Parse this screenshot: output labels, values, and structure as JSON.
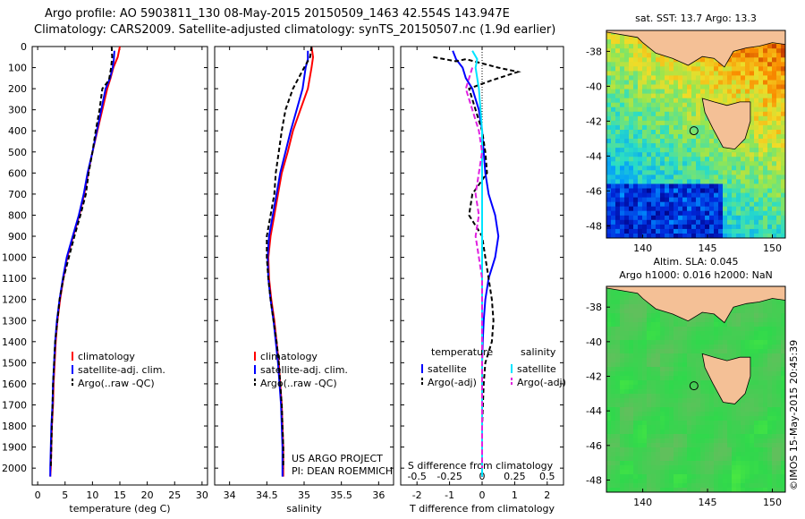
{
  "header": {
    "line1": "Argo profile: AO 5903811_130 08-May-2015 20150509_1463 42.554S 143.947E",
    "line2": "Climatology: CARS2009. Satellite-adjusted climatology: synTS_20150507.nc (1.9d earlier)"
  },
  "credit": "US ARGO PROJECT",
  "pi": "PI: DEAN ROEMMICH",
  "watermark": "©IMOS 15-May-2015 20:45:39",
  "colors": {
    "clim": "#ff0000",
    "sat": "#0000ff",
    "argo": "#000000",
    "sat_s": "#00e5ff",
    "argo_s": "#e020e0",
    "land": "#f4c096"
  },
  "chart_data": [
    {
      "type": "line",
      "id": "temperature",
      "xlabel": "temperature (deg C)",
      "ylabel": "",
      "xlim": [
        -1,
        31
      ],
      "ylim": [
        2080,
        0
      ],
      "xticks": [
        "0",
        "5",
        "10",
        "15",
        "20",
        "25",
        "30"
      ],
      "yticks": [
        "0",
        "100",
        "200",
        "300",
        "400",
        "500",
        "600",
        "700",
        "800",
        "900",
        "1000",
        "1100",
        "1200",
        "1300",
        "1400",
        "1500",
        "1600",
        "1700",
        "1800",
        "1900",
        "2000"
      ],
      "legend": [
        "climatology",
        "satellite-adj. clim.",
        "Argo(..raw -QC)"
      ],
      "series": [
        {
          "name": "climatology",
          "color": "#ff0000",
          "dash": "",
          "points": [
            [
              15,
              0
            ],
            [
              14.6,
              50
            ],
            [
              13.8,
              100
            ],
            [
              13.3,
              150
            ],
            [
              12.7,
              200
            ],
            [
              11.8,
              300
            ],
            [
              10.9,
              400
            ],
            [
              10,
              500
            ],
            [
              9.2,
              600
            ],
            [
              8.5,
              700
            ],
            [
              7.6,
              800
            ],
            [
              6.5,
              900
            ],
            [
              5.4,
              1000
            ],
            [
              4.7,
              1100
            ],
            [
              4.1,
              1200
            ],
            [
              3.6,
              1300
            ],
            [
              3.3,
              1400
            ],
            [
              3.1,
              1500
            ],
            [
              2.9,
              1600
            ],
            [
              2.8,
              1700
            ],
            [
              2.6,
              1800
            ],
            [
              2.5,
              1900
            ],
            [
              2.4,
              2000
            ],
            [
              2.3,
              2040
            ]
          ]
        },
        {
          "name": "satellite-adj. clim.",
          "color": "#0000ff",
          "dash": "",
          "points": [
            [
              14,
              20
            ],
            [
              13.9,
              60
            ],
            [
              13.7,
              100
            ],
            [
              13.2,
              150
            ],
            [
              12.4,
              200
            ],
            [
              11.6,
              300
            ],
            [
              10.8,
              400
            ],
            [
              10,
              500
            ],
            [
              9.1,
              600
            ],
            [
              8.4,
              700
            ],
            [
              7.5,
              800
            ],
            [
              6.4,
              900
            ],
            [
              5.3,
              1000
            ],
            [
              4.6,
              1100
            ],
            [
              4,
              1200
            ],
            [
              3.5,
              1300
            ],
            [
              3.2,
              1400
            ],
            [
              3,
              1500
            ],
            [
              2.8,
              1600
            ],
            [
              2.7,
              1700
            ],
            [
              2.5,
              1800
            ],
            [
              2.4,
              1900
            ],
            [
              2.3,
              2000
            ],
            [
              2.3,
              2040
            ]
          ]
        },
        {
          "name": "Argo(..raw -QC)",
          "color": "#000000",
          "dash": "5,3",
          "points": [
            [
              13.5,
              0
            ],
            [
              13.6,
              50
            ],
            [
              13.4,
              100
            ],
            [
              13,
              160
            ],
            [
              11.8,
              200
            ],
            [
              11.3,
              300
            ],
            [
              10.6,
              400
            ],
            [
              10,
              500
            ],
            [
              9.3,
              600
            ],
            [
              8.8,
              700
            ],
            [
              7.8,
              800
            ],
            [
              6.7,
              900
            ],
            [
              5.7,
              1000
            ],
            [
              4.7,
              1100
            ],
            [
              4,
              1200
            ],
            [
              3.6,
              1300
            ],
            [
              3.2,
              1400
            ],
            [
              3,
              1500
            ],
            [
              2.8,
              1600
            ],
            [
              2.7,
              1700
            ],
            [
              2.6,
              1800
            ],
            [
              2.5,
              1900
            ],
            [
              2.4,
              2000
            ]
          ]
        }
      ]
    },
    {
      "type": "line",
      "id": "salinity",
      "xlabel": "salinity",
      "ylabel": "",
      "xlim": [
        33.8,
        36.2
      ],
      "ylim": [
        2080,
        0
      ],
      "xticks": [
        "34",
        "34.5",
        "35",
        "35.5",
        "36"
      ],
      "legend": [
        "climatology",
        "satellite-adj. clim.",
        "Argo(..raw -QC)"
      ],
      "series": [
        {
          "name": "climatology",
          "color": "#ff0000",
          "dash": "",
          "points": [
            [
              35.1,
              0
            ],
            [
              35.12,
              50
            ],
            [
              35.1,
              100
            ],
            [
              35.05,
              200
            ],
            [
              34.95,
              300
            ],
            [
              34.85,
              400
            ],
            [
              34.78,
              500
            ],
            [
              34.7,
              600
            ],
            [
              34.65,
              700
            ],
            [
              34.6,
              800
            ],
            [
              34.55,
              900
            ],
            [
              34.52,
              1000
            ],
            [
              34.53,
              1100
            ],
            [
              34.56,
              1200
            ],
            [
              34.6,
              1300
            ],
            [
              34.63,
              1400
            ],
            [
              34.66,
              1500
            ],
            [
              34.68,
              1600
            ],
            [
              34.7,
              1700
            ],
            [
              34.71,
              1800
            ],
            [
              34.72,
              1900
            ],
            [
              34.72,
              2000
            ],
            [
              34.72,
              2040
            ]
          ]
        },
        {
          "name": "satellite-adj. clim.",
          "color": "#0000ff",
          "dash": "",
          "points": [
            [
              35.05,
              20
            ],
            [
              35.05,
              60
            ],
            [
              35.02,
              100
            ],
            [
              34.98,
              200
            ],
            [
              34.9,
              300
            ],
            [
              34.82,
              400
            ],
            [
              34.75,
              500
            ],
            [
              34.68,
              600
            ],
            [
              34.63,
              700
            ],
            [
              34.58,
              800
            ],
            [
              34.53,
              900
            ],
            [
              34.51,
              1000
            ],
            [
              34.52,
              1100
            ],
            [
              34.55,
              1200
            ],
            [
              34.59,
              1300
            ],
            [
              34.62,
              1400
            ],
            [
              34.65,
              1500
            ],
            [
              34.67,
              1600
            ],
            [
              34.69,
              1700
            ],
            [
              34.7,
              1800
            ],
            [
              34.71,
              1900
            ],
            [
              34.71,
              2000
            ],
            [
              34.71,
              2040
            ]
          ]
        },
        {
          "name": "Argo(..raw -QC)",
          "color": "#000000",
          "dash": "5,3",
          "points": [
            [
              35.1,
              0
            ],
            [
              35.08,
              50
            ],
            [
              35.0,
              100
            ],
            [
              34.85,
              200
            ],
            [
              34.75,
              300
            ],
            [
              34.7,
              400
            ],
            [
              34.66,
              500
            ],
            [
              34.62,
              600
            ],
            [
              34.6,
              700
            ],
            [
              34.55,
              800
            ],
            [
              34.5,
              900
            ],
            [
              34.5,
              1000
            ],
            [
              34.52,
              1100
            ],
            [
              34.55,
              1200
            ],
            [
              34.59,
              1300
            ],
            [
              34.63,
              1400
            ],
            [
              34.66,
              1500
            ],
            [
              34.68,
              1600
            ],
            [
              34.7,
              1700
            ],
            [
              34.71,
              1800
            ],
            [
              34.72,
              1900
            ],
            [
              34.72,
              2000
            ]
          ]
        }
      ]
    },
    {
      "type": "line",
      "id": "difference",
      "xlabel": "T difference from climatology",
      "xlabel_top": "S difference from climatology",
      "xlim": [
        -2.5,
        2.5
      ],
      "ylim": [
        2080,
        0
      ],
      "xticks_bottom": [
        "-2",
        "-1",
        "0",
        "1",
        "2"
      ],
      "xticks_top": [
        "-0.5",
        "-0.25",
        "0",
        "0.25",
        "0.5"
      ],
      "legend_titles": [
        "temperature",
        "salinity"
      ],
      "legend": [
        "satellite",
        "Argo(-adj)",
        "satellite",
        "Argo(-adj)"
      ],
      "series": [
        {
          "name": "satellite",
          "color": "#0000ff",
          "dash": "",
          "points": [
            [
              -0.9,
              20
            ],
            [
              -0.8,
              60
            ],
            [
              -0.6,
              100
            ],
            [
              -0.5,
              150
            ],
            [
              -0.3,
              200
            ],
            [
              -0.1,
              300
            ],
            [
              0,
              400
            ],
            [
              0.05,
              500
            ],
            [
              0.1,
              600
            ],
            [
              0.2,
              700
            ],
            [
              0.4,
              800
            ],
            [
              0.5,
              900
            ],
            [
              0.4,
              1000
            ],
            [
              0.2,
              1100
            ],
            [
              0.1,
              1200
            ],
            [
              0.05,
              1300
            ],
            [
              0.02,
              1400
            ],
            [
              0,
              1500
            ],
            [
              0,
              1600
            ],
            [
              0,
              1800
            ],
            [
              0,
              2040
            ]
          ]
        },
        {
          "name": "Argo(-adj)",
          "color": "#000000",
          "dash": "5,3",
          "points": [
            [
              -1.5,
              50
            ],
            [
              -0.8,
              70
            ],
            [
              -0.5,
              60
            ],
            [
              0.5,
              100
            ],
            [
              1.1,
              120
            ],
            [
              0.3,
              160
            ],
            [
              -0.4,
              200
            ],
            [
              -0.2,
              300
            ],
            [
              0,
              400
            ],
            [
              0.1,
              500
            ],
            [
              0.15,
              600
            ],
            [
              -0.3,
              700
            ],
            [
              -0.4,
              800
            ],
            [
              0,
              900
            ],
            [
              0.1,
              1000
            ],
            [
              0.2,
              1100
            ],
            [
              0.3,
              1200
            ],
            [
              0.35,
              1300
            ],
            [
              0.3,
              1400
            ],
            [
              0.1,
              1500
            ],
            [
              0.05,
              1600
            ],
            [
              0,
              1800
            ],
            [
              0,
              2000
            ]
          ]
        },
        {
          "name": "satellite",
          "color": "#00e5ff",
          "dash": "",
          "points": [
            [
              -0.3,
              20
            ],
            [
              -0.15,
              60
            ],
            [
              -0.2,
              100
            ],
            [
              -0.1,
              200
            ],
            [
              0,
              400
            ],
            [
              0,
              600
            ],
            [
              0,
              800
            ],
            [
              0,
              1000
            ],
            [
              0,
              1200
            ],
            [
              0,
              1400
            ],
            [
              0,
              1600
            ],
            [
              0,
              1800
            ],
            [
              0,
              2040
            ]
          ]
        },
        {
          "name": "Argo(-adj)",
          "color": "#e020e0",
          "dash": "6,3",
          "points": [
            [
              -0.3,
              100
            ],
            [
              -0.5,
              200
            ],
            [
              -0.3,
              300
            ],
            [
              -0.1,
              400
            ],
            [
              0,
              500
            ],
            [
              -0.1,
              600
            ],
            [
              -0.2,
              700
            ],
            [
              -0.1,
              800
            ],
            [
              -0.2,
              900
            ],
            [
              -0.1,
              1000
            ],
            [
              0,
              1100
            ],
            [
              0,
              1300
            ],
            [
              0,
              1500
            ],
            [
              0,
              1800
            ],
            [
              0,
              2000
            ]
          ]
        }
      ]
    }
  ],
  "maps": [
    {
      "id": "sst",
      "title": "sat. SST: 13.7  Argo: 13.3",
      "xticks": [
        "140",
        "145",
        "150"
      ],
      "yticks": [
        "-38",
        "-40",
        "-42",
        "-44",
        "-46",
        "-48"
      ],
      "xlim": [
        137.2,
        151
      ],
      "ylim": [
        -48.7,
        -36.8
      ],
      "argo_pos": [
        143.95,
        -42.55
      ]
    },
    {
      "id": "sla",
      "title": "Altim. SLA: 0.045",
      "subtitle": "Argo h1000: 0.016 h2000: NaN",
      "xticks": [
        "140",
        "145",
        "150"
      ],
      "yticks": [
        "-38",
        "-40",
        "-42",
        "-44",
        "-46",
        "-48"
      ],
      "xlim": [
        137.2,
        151
      ],
      "ylim": [
        -48.7,
        -36.8
      ],
      "argo_pos": [
        143.95,
        -42.55
      ]
    }
  ]
}
